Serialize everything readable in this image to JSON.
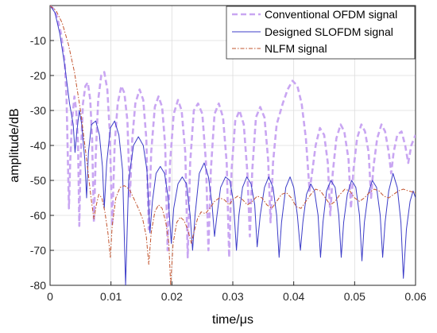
{
  "chart_data": {
    "type": "line",
    "xlabel": "time/μs",
    "ylabel": "amplitude/dB",
    "xlim": [
      0,
      0.06
    ],
    "ylim": [
      -80,
      0
    ],
    "grid": true,
    "legend_position": "top-right",
    "x_ticks": [
      "0",
      "0.01",
      "0.02",
      "0.03",
      "0.04",
      "0.05",
      "0.06"
    ],
    "y_ticks": [
      "-10",
      "-20",
      "-30",
      "-40",
      "-50",
      "-60",
      "-70",
      "-80"
    ],
    "series": [
      {
        "name": "Conventional OFDM signal",
        "color": "#c9a6f2",
        "style": "dashed",
        "points": [
          [
            0,
            0
          ],
          [
            0.0006,
            -1
          ],
          [
            0.0012,
            -3.5
          ],
          [
            0.0018,
            -8
          ],
          [
            0.0024,
            -16
          ],
          [
            0.0027,
            -26
          ],
          [
            0.0029,
            -42
          ],
          [
            0.0031,
            -58
          ],
          [
            0.0033,
            -45
          ],
          [
            0.0036,
            -33
          ],
          [
            0.004,
            -26
          ],
          [
            0.0043,
            -30
          ],
          [
            0.0046,
            -40
          ],
          [
            0.0048,
            -63
          ],
          [
            0.005,
            -45
          ],
          [
            0.0054,
            -28
          ],
          [
            0.0058,
            -23
          ],
          [
            0.0062,
            -22
          ],
          [
            0.0066,
            -27
          ],
          [
            0.0069,
            -38
          ],
          [
            0.0072,
            -62
          ],
          [
            0.0075,
            -43
          ],
          [
            0.0079,
            -27
          ],
          [
            0.0084,
            -20
          ],
          [
            0.0089,
            -19
          ],
          [
            0.0094,
            -24
          ],
          [
            0.0098,
            -36
          ],
          [
            0.0102,
            -63
          ],
          [
            0.0106,
            -40
          ],
          [
            0.0111,
            -28
          ],
          [
            0.0117,
            -23
          ],
          [
            0.0122,
            -25
          ],
          [
            0.0127,
            -33
          ],
          [
            0.0131,
            -55
          ],
          [
            0.0135,
            -38
          ],
          [
            0.014,
            -28
          ],
          [
            0.0147,
            -24
          ],
          [
            0.0153,
            -27
          ],
          [
            0.0158,
            -38
          ],
          [
            0.0162,
            -64
          ],
          [
            0.0166,
            -42
          ],
          [
            0.0172,
            -29
          ],
          [
            0.0178,
            -26
          ],
          [
            0.0184,
            -29
          ],
          [
            0.0189,
            -40
          ],
          [
            0.0193,
            -70
          ],
          [
            0.0197,
            -45
          ],
          [
            0.0203,
            -31
          ],
          [
            0.021,
            -27
          ],
          [
            0.0216,
            -30
          ],
          [
            0.0222,
            -42
          ],
          [
            0.0226,
            -72
          ],
          [
            0.023,
            -45
          ],
          [
            0.0236,
            -30
          ],
          [
            0.0243,
            -28
          ],
          [
            0.025,
            -31
          ],
          [
            0.0256,
            -45
          ],
          [
            0.026,
            -70
          ],
          [
            0.0264,
            -47
          ],
          [
            0.027,
            -31
          ],
          [
            0.0277,
            -28
          ],
          [
            0.0284,
            -32
          ],
          [
            0.029,
            -45
          ],
          [
            0.0294,
            -72
          ],
          [
            0.0298,
            -47
          ],
          [
            0.0304,
            -33
          ],
          [
            0.0311,
            -30
          ],
          [
            0.0318,
            -34
          ],
          [
            0.0324,
            -48
          ],
          [
            0.0328,
            -66
          ],
          [
            0.0332,
            -47
          ],
          [
            0.0338,
            -32
          ],
          [
            0.0345,
            -29
          ],
          [
            0.0352,
            -32
          ],
          [
            0.0358,
            -44
          ],
          [
            0.0362,
            -62
          ],
          [
            0.0366,
            -45
          ],
          [
            0.0372,
            -34
          ],
          [
            0.0382,
            -28
          ],
          [
            0.039,
            -24
          ],
          [
            0.0398,
            -21.5
          ],
          [
            0.0406,
            -23
          ],
          [
            0.0413,
            -28
          ],
          [
            0.042,
            -38
          ],
          [
            0.0426,
            -53
          ],
          [
            0.043,
            -48
          ],
          [
            0.0436,
            -40
          ],
          [
            0.0443,
            -35
          ],
          [
            0.045,
            -37
          ],
          [
            0.0456,
            -45
          ],
          [
            0.046,
            -60
          ],
          [
            0.0464,
            -48
          ],
          [
            0.047,
            -38
          ],
          [
            0.0477,
            -34
          ],
          [
            0.0483,
            -36
          ],
          [
            0.049,
            -44
          ],
          [
            0.0494,
            -58
          ],
          [
            0.0498,
            -47
          ],
          [
            0.0504,
            -38
          ],
          [
            0.0511,
            -34
          ],
          [
            0.0517,
            -36
          ],
          [
            0.0523,
            -42
          ],
          [
            0.0527,
            -55
          ],
          [
            0.0531,
            -46
          ],
          [
            0.0537,
            -38
          ],
          [
            0.0544,
            -34
          ],
          [
            0.055,
            -36
          ],
          [
            0.0556,
            -42
          ],
          [
            0.056,
            -48
          ],
          [
            0.0564,
            -42
          ],
          [
            0.057,
            -37
          ],
          [
            0.0577,
            -36
          ],
          [
            0.0583,
            -40
          ],
          [
            0.0588,
            -45
          ],
          [
            0.0593,
            -40
          ],
          [
            0.06,
            -37
          ]
        ]
      },
      {
        "name": "Designed SLOFDM signal",
        "color": "#3c3cc8",
        "style": "solid",
        "points": [
          [
            0,
            0
          ],
          [
            0.0008,
            -2
          ],
          [
            0.0016,
            -8
          ],
          [
            0.0024,
            -17
          ],
          [
            0.0032,
            -28
          ],
          [
            0.0038,
            -34
          ],
          [
            0.0041,
            -42
          ],
          [
            0.0044,
            -36
          ],
          [
            0.0048,
            -30
          ],
          [
            0.0052,
            -34
          ],
          [
            0.0057,
            -44
          ],
          [
            0.006,
            -55
          ],
          [
            0.0063,
            -42
          ],
          [
            0.0068,
            -34
          ],
          [
            0.0075,
            -33
          ],
          [
            0.0081,
            -37
          ],
          [
            0.0086,
            -46
          ],
          [
            0.0089,
            -58
          ],
          [
            0.0093,
            -45
          ],
          [
            0.0099,
            -35
          ],
          [
            0.0106,
            -33
          ],
          [
            0.0113,
            -37
          ],
          [
            0.0119,
            -47
          ],
          [
            0.0124,
            -80
          ],
          [
            0.0129,
            -50
          ],
          [
            0.0137,
            -40
          ],
          [
            0.0145,
            -37.5
          ],
          [
            0.0153,
            -40
          ],
          [
            0.0159,
            -47
          ],
          [
            0.0164,
            -65
          ],
          [
            0.0168,
            -56
          ],
          [
            0.0174,
            -48
          ],
          [
            0.0181,
            -46
          ],
          [
            0.0188,
            -48
          ],
          [
            0.0194,
            -55
          ],
          [
            0.0199,
            -68
          ],
          [
            0.0203,
            -58
          ],
          [
            0.021,
            -51
          ],
          [
            0.0217,
            -49
          ],
          [
            0.0224,
            -51
          ],
          [
            0.023,
            -60
          ],
          [
            0.0234,
            -70
          ],
          [
            0.0238,
            -60
          ],
          [
            0.0245,
            -48
          ],
          [
            0.0253,
            -45
          ],
          [
            0.026,
            -49
          ],
          [
            0.0266,
            -57
          ],
          [
            0.027,
            -66
          ],
          [
            0.0274,
            -60
          ],
          [
            0.028,
            -52
          ],
          [
            0.0288,
            -49
          ],
          [
            0.0295,
            -50
          ],
          [
            0.0301,
            -56
          ],
          [
            0.0306,
            -70
          ],
          [
            0.031,
            -60
          ],
          [
            0.0316,
            -52
          ],
          [
            0.0323,
            -49
          ],
          [
            0.033,
            -51
          ],
          [
            0.0336,
            -57
          ],
          [
            0.034,
            -69
          ],
          [
            0.0345,
            -60
          ],
          [
            0.0352,
            -52
          ],
          [
            0.0359,
            -49
          ],
          [
            0.0366,
            -52
          ],
          [
            0.0372,
            -60
          ],
          [
            0.0376,
            -72
          ],
          [
            0.038,
            -62
          ],
          [
            0.0387,
            -52
          ],
          [
            0.0394,
            -49
          ],
          [
            0.04,
            -52
          ],
          [
            0.0406,
            -60
          ],
          [
            0.0411,
            -70
          ],
          [
            0.0415,
            -62
          ],
          [
            0.0421,
            -54
          ],
          [
            0.0428,
            -51
          ],
          [
            0.0434,
            -53
          ],
          [
            0.044,
            -60
          ],
          [
            0.0444,
            -72
          ],
          [
            0.0448,
            -62
          ],
          [
            0.0454,
            -53
          ],
          [
            0.0461,
            -50
          ],
          [
            0.0468,
            -52
          ],
          [
            0.0474,
            -60
          ],
          [
            0.0478,
            -72
          ],
          [
            0.0482,
            -62
          ],
          [
            0.0488,
            -54
          ],
          [
            0.0495,
            -50
          ],
          [
            0.0502,
            -52
          ],
          [
            0.0508,
            -60
          ],
          [
            0.0512,
            -73
          ],
          [
            0.0516,
            -62
          ],
          [
            0.0522,
            -54
          ],
          [
            0.0529,
            -50
          ],
          [
            0.0536,
            -52
          ],
          [
            0.0542,
            -60
          ],
          [
            0.0546,
            -72
          ],
          [
            0.055,
            -62
          ],
          [
            0.0556,
            -53
          ],
          [
            0.0563,
            -48
          ],
          [
            0.057,
            -52
          ],
          [
            0.0576,
            -62
          ],
          [
            0.058,
            -78
          ],
          [
            0.0585,
            -64
          ],
          [
            0.0591,
            -56
          ],
          [
            0.0596,
            -53
          ],
          [
            0.06,
            -55
          ]
        ]
      },
      {
        "name": "NLFM signal",
        "color": "#c2542e",
        "style": "dashdot",
        "points": [
          [
            0,
            0
          ],
          [
            0.001,
            -1.5
          ],
          [
            0.002,
            -5
          ],
          [
            0.003,
            -11
          ],
          [
            0.004,
            -19
          ],
          [
            0.005,
            -30
          ],
          [
            0.006,
            -44
          ],
          [
            0.0068,
            -56
          ],
          [
            0.0072,
            -61
          ],
          [
            0.0076,
            -57
          ],
          [
            0.008,
            -54
          ],
          [
            0.0085,
            -55
          ],
          [
            0.009,
            -59
          ],
          [
            0.0095,
            -65
          ],
          [
            0.0099,
            -72
          ],
          [
            0.0102,
            -63
          ],
          [
            0.0108,
            -55
          ],
          [
            0.0115,
            -52
          ],
          [
            0.0122,
            -51.5
          ],
          [
            0.013,
            -52.5
          ],
          [
            0.0137,
            -55
          ],
          [
            0.0145,
            -58
          ],
          [
            0.0152,
            -61
          ],
          [
            0.0158,
            -66
          ],
          [
            0.0162,
            -74
          ],
          [
            0.0166,
            -65
          ],
          [
            0.0172,
            -59
          ],
          [
            0.0178,
            -57
          ],
          [
            0.0184,
            -58
          ],
          [
            0.019,
            -62
          ],
          [
            0.0195,
            -68
          ],
          [
            0.0198,
            -80
          ],
          [
            0.0202,
            -68
          ],
          [
            0.0208,
            -62
          ],
          [
            0.0214,
            -60.5
          ],
          [
            0.022,
            -61.5
          ],
          [
            0.0226,
            -64
          ],
          [
            0.0232,
            -68
          ],
          [
            0.0236,
            -65
          ],
          [
            0.0242,
            -61
          ],
          [
            0.0248,
            -59
          ],
          [
            0.0255,
            -59.5
          ],
          [
            0.0262,
            -58
          ],
          [
            0.027,
            -56
          ],
          [
            0.0278,
            -55
          ],
          [
            0.0286,
            -55.5
          ],
          [
            0.0294,
            -57
          ],
          [
            0.03,
            -55.5
          ],
          [
            0.0308,
            -54.5
          ],
          [
            0.0316,
            -55.5
          ],
          [
            0.0324,
            -57
          ],
          [
            0.0332,
            -56
          ],
          [
            0.034,
            -54.5
          ],
          [
            0.0348,
            -55
          ],
          [
            0.0356,
            -57
          ],
          [
            0.0364,
            -58
          ],
          [
            0.0372,
            -56
          ],
          [
            0.038,
            -54
          ],
          [
            0.0388,
            -53.5
          ],
          [
            0.0396,
            -55
          ],
          [
            0.0404,
            -57.5
          ],
          [
            0.0412,
            -58
          ],
          [
            0.042,
            -56
          ],
          [
            0.0428,
            -54
          ],
          [
            0.0436,
            -52.5
          ],
          [
            0.0444,
            -53
          ],
          [
            0.0452,
            -55
          ],
          [
            0.046,
            -57
          ],
          [
            0.0468,
            -56
          ],
          [
            0.0476,
            -54
          ],
          [
            0.0484,
            -52.5
          ],
          [
            0.0492,
            -53
          ],
          [
            0.05,
            -55
          ],
          [
            0.0508,
            -56
          ],
          [
            0.0516,
            -55
          ],
          [
            0.0524,
            -53.5
          ],
          [
            0.0532,
            -52.5
          ],
          [
            0.054,
            -53
          ],
          [
            0.0548,
            -54.5
          ],
          [
            0.0556,
            -55
          ],
          [
            0.0564,
            -54
          ],
          [
            0.0572,
            -53
          ],
          [
            0.058,
            -52.5
          ],
          [
            0.0588,
            -53
          ],
          [
            0.06,
            -53.5
          ]
        ]
      }
    ]
  }
}
